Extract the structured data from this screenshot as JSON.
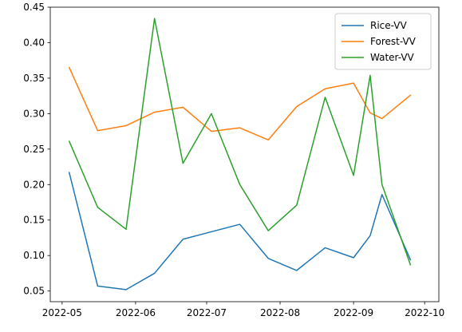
{
  "chart_data": {
    "type": "line",
    "title": "",
    "xlabel": "",
    "ylabel": "",
    "xlim": [
      "2022-04-26",
      "2022-10-07"
    ],
    "ylim": [
      0.035,
      0.45
    ],
    "x_ticks": [
      {
        "date": "2022-05-01",
        "label": "2022-05"
      },
      {
        "date": "2022-06-01",
        "label": "2022-06"
      },
      {
        "date": "2022-07-01",
        "label": "2022-07"
      },
      {
        "date": "2022-08-01",
        "label": "2022-08"
      },
      {
        "date": "2022-09-01",
        "label": "2022-09"
      },
      {
        "date": "2022-10-01",
        "label": "2022-10"
      }
    ],
    "y_ticks": [
      {
        "value": 0.05,
        "label": "0.05"
      },
      {
        "value": 0.1,
        "label": "0.10"
      },
      {
        "value": 0.15,
        "label": "0.15"
      },
      {
        "value": 0.2,
        "label": "0.20"
      },
      {
        "value": 0.25,
        "label": "0.25"
      },
      {
        "value": 0.3,
        "label": "0.30"
      },
      {
        "value": 0.35,
        "label": "0.35"
      },
      {
        "value": 0.4,
        "label": "0.40"
      },
      {
        "value": 0.45,
        "label": "0.45"
      }
    ],
    "grid": false,
    "legend_position": "top-right",
    "series": [
      {
        "name": "Rice-VV",
        "color": "#1f77b4",
        "points": [
          {
            "x": "2022-05-04",
            "y": 0.217
          },
          {
            "x": "2022-05-16",
            "y": 0.057
          },
          {
            "x": "2022-05-28",
            "y": 0.052
          },
          {
            "x": "2022-06-09",
            "y": 0.075
          },
          {
            "x": "2022-06-21",
            "y": 0.123
          },
          {
            "x": "2022-07-15",
            "y": 0.144
          },
          {
            "x": "2022-07-27",
            "y": 0.096
          },
          {
            "x": "2022-08-08",
            "y": 0.079
          },
          {
            "x": "2022-08-20",
            "y": 0.111
          },
          {
            "x": "2022-09-01",
            "y": 0.097
          },
          {
            "x": "2022-09-08",
            "y": 0.128
          },
          {
            "x": "2022-09-13",
            "y": 0.186
          },
          {
            "x": "2022-09-25",
            "y": 0.094
          }
        ]
      },
      {
        "name": "Forest-VV",
        "color": "#ff7f0e",
        "points": [
          {
            "x": "2022-05-04",
            "y": 0.365
          },
          {
            "x": "2022-05-16",
            "y": 0.276
          },
          {
            "x": "2022-05-28",
            "y": 0.283
          },
          {
            "x": "2022-06-09",
            "y": 0.302
          },
          {
            "x": "2022-06-21",
            "y": 0.309
          },
          {
            "x": "2022-07-03",
            "y": 0.275
          },
          {
            "x": "2022-07-15",
            "y": 0.28
          },
          {
            "x": "2022-07-27",
            "y": 0.263
          },
          {
            "x": "2022-08-08",
            "y": 0.31
          },
          {
            "x": "2022-08-20",
            "y": 0.335
          },
          {
            "x": "2022-09-01",
            "y": 0.343
          },
          {
            "x": "2022-09-08",
            "y": 0.301
          },
          {
            "x": "2022-09-13",
            "y": 0.293
          },
          {
            "x": "2022-09-25",
            "y": 0.326
          }
        ]
      },
      {
        "name": "Water-VV",
        "color": "#2ca02c",
        "points": [
          {
            "x": "2022-05-04",
            "y": 0.261
          },
          {
            "x": "2022-05-16",
            "y": 0.168
          },
          {
            "x": "2022-05-28",
            "y": 0.137
          },
          {
            "x": "2022-06-09",
            "y": 0.434
          },
          {
            "x": "2022-06-21",
            "y": 0.23
          },
          {
            "x": "2022-07-03",
            "y": 0.3
          },
          {
            "x": "2022-07-15",
            "y": 0.2
          },
          {
            "x": "2022-07-27",
            "y": 0.135
          },
          {
            "x": "2022-08-08",
            "y": 0.171
          },
          {
            "x": "2022-08-20",
            "y": 0.323
          },
          {
            "x": "2022-09-01",
            "y": 0.213
          },
          {
            "x": "2022-09-08",
            "y": 0.354
          },
          {
            "x": "2022-09-13",
            "y": 0.2
          },
          {
            "x": "2022-09-25",
            "y": 0.087
          }
        ]
      }
    ]
  }
}
